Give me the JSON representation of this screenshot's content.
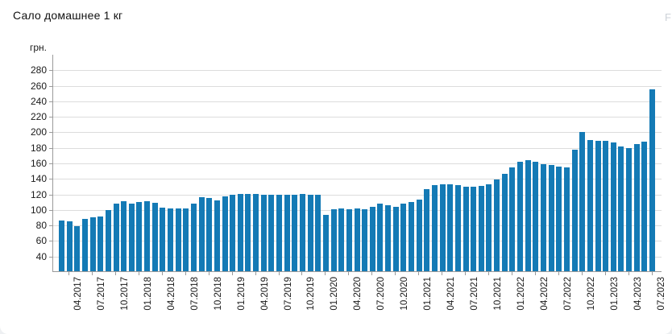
{
  "header": {
    "title": "Сало домашнее 1 кг",
    "watermark": "F"
  },
  "chart_data": {
    "type": "bar",
    "title": "Сало домашнее 1 кг",
    "ylabel": "грн.",
    "xlabel": "",
    "bar_color": "#147ab5",
    "grid": true,
    "legend": "none",
    "ylim": [
      21,
      300
    ],
    "y_ticks": [
      40,
      60,
      80,
      100,
      120,
      140,
      160,
      180,
      200,
      220,
      240,
      260,
      280
    ],
    "x_tick_labels": [
      "04.2017",
      "07.2017",
      "10.2017",
      "01.2018",
      "04.2018",
      "07.2018",
      "10.2018",
      "01.2019",
      "04.2019",
      "07.2019",
      "10.2019",
      "01.2020",
      "04.2020",
      "07.2020",
      "10.2020",
      "01.2021",
      "04.2021",
      "07.2021",
      "10.2021",
      "01.2022",
      "04.2022",
      "07.2022",
      "10.2022",
      "01.2023",
      "04.2023",
      "07.2023"
    ],
    "x_tick_start_index": 1,
    "x_tick_every": 3,
    "x": [
      "03.2017",
      "04.2017",
      "05.2017",
      "06.2017",
      "07.2017",
      "08.2017",
      "09.2017",
      "10.2017",
      "11.2017",
      "12.2017",
      "01.2018",
      "02.2018",
      "03.2018",
      "04.2018",
      "05.2018",
      "06.2018",
      "07.2018",
      "08.2018",
      "09.2018",
      "10.2018",
      "11.2018",
      "12.2018",
      "01.2019",
      "02.2019",
      "03.2019",
      "04.2019",
      "05.2019",
      "06.2019",
      "07.2019",
      "08.2019",
      "09.2019",
      "10.2019",
      "11.2019",
      "12.2019",
      "01.2020",
      "02.2020",
      "03.2020",
      "04.2020",
      "05.2020",
      "06.2020",
      "07.2020",
      "08.2020",
      "09.2020",
      "10.2020",
      "11.2020",
      "12.2020",
      "01.2021",
      "02.2021",
      "03.2021",
      "04.2021",
      "05.2021",
      "06.2021",
      "07.2021",
      "08.2021",
      "09.2021",
      "10.2021",
      "11.2021",
      "12.2021",
      "01.2022",
      "02.2022",
      "03.2022",
      "04.2022",
      "05.2022",
      "06.2022",
      "07.2022",
      "08.2022",
      "09.2022",
      "10.2022",
      "11.2022",
      "12.2022",
      "01.2023",
      "02.2023",
      "03.2023",
      "04.2023",
      "05.2023",
      "06.2023",
      "07.2023"
    ],
    "values": [
      86,
      85,
      79,
      88,
      90,
      92,
      100,
      108,
      111,
      108,
      110,
      111,
      109,
      103,
      102,
      102,
      102,
      108,
      116,
      115,
      112,
      117,
      120,
      121,
      121,
      121,
      120,
      120,
      120,
      120,
      120,
      121,
      120,
      120,
      94,
      101,
      102,
      101,
      102,
      101,
      104,
      108,
      106,
      104,
      108,
      110,
      113,
      127,
      132,
      133,
      133,
      132,
      130,
      130,
      131,
      133,
      139,
      147,
      155,
      162,
      164,
      162,
      159,
      158,
      156,
      155,
      178,
      200,
      190,
      189,
      189,
      187,
      182,
      180,
      185,
      188,
      255
    ]
  }
}
